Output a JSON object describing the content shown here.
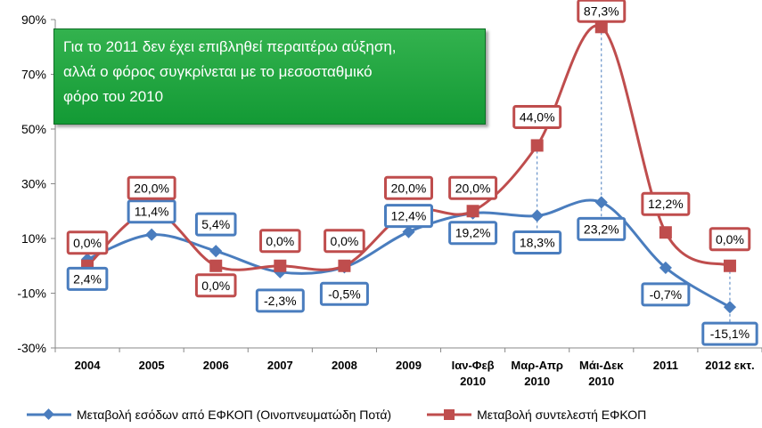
{
  "chart_data": {
    "type": "line",
    "categories": [
      "2004",
      "2005",
      "2006",
      "2007",
      "2008",
      "2009",
      "Ιαν-Φεβ\n2010",
      "Μαρ-Απρ\n2010",
      "Μάι-Δεκ\n2010",
      "2011",
      "2012 εκτ."
    ],
    "series": [
      {
        "name": "Μεταβολή εσόδων από ΕΦΚΟΠ (Οινοπνευματώδη Ποτά)",
        "color": "#4a7dbe",
        "marker": "diamond",
        "values": [
          2.4,
          11.4,
          5.4,
          -2.3,
          -0.5,
          12.4,
          19.2,
          18.3,
          23.2,
          -0.7,
          -15.1
        ],
        "labels": [
          "2,4%",
          "11,4%",
          "5,4%",
          "-2,3%",
          "-0,5%",
          "12,4%",
          "19,2%",
          "18,3%",
          "23,2%",
          "-0,7%",
          "-15,1%"
        ]
      },
      {
        "name": "Μεταβολή συντελεστή ΕΦΚΟΠ",
        "color": "#bf4d4d",
        "marker": "square",
        "values": [
          0.0,
          20.0,
          0.0,
          0.0,
          0.0,
          20.0,
          20.0,
          44.0,
          87.3,
          12.2,
          0.0
        ],
        "labels": [
          "0,0%",
          "20,0%",
          "0,0%",
          "0,0%",
          "0,0%",
          "20,0%",
          "20,0%",
          "44,0%",
          "87,3%",
          "12,2%",
          "0,0%"
        ]
      }
    ],
    "yticks": [
      "-30%",
      "-10%",
      "10%",
      "30%",
      "50%",
      "70%",
      "90%"
    ],
    "ytick_values": [
      -30,
      -10,
      10,
      30,
      50,
      70,
      90
    ],
    "ylim": [
      -30,
      90
    ],
    "grid": false,
    "legend_position": "bottom"
  },
  "annotation": {
    "text": "Για το 2011 δεν έχει επιβληθεί περαιτέρω αύξηση,\nαλλά ο φόρος συγκρίνεται  με το μεσοσταθμικό\nφόρο του 2010",
    "color": "#1ea23c"
  }
}
